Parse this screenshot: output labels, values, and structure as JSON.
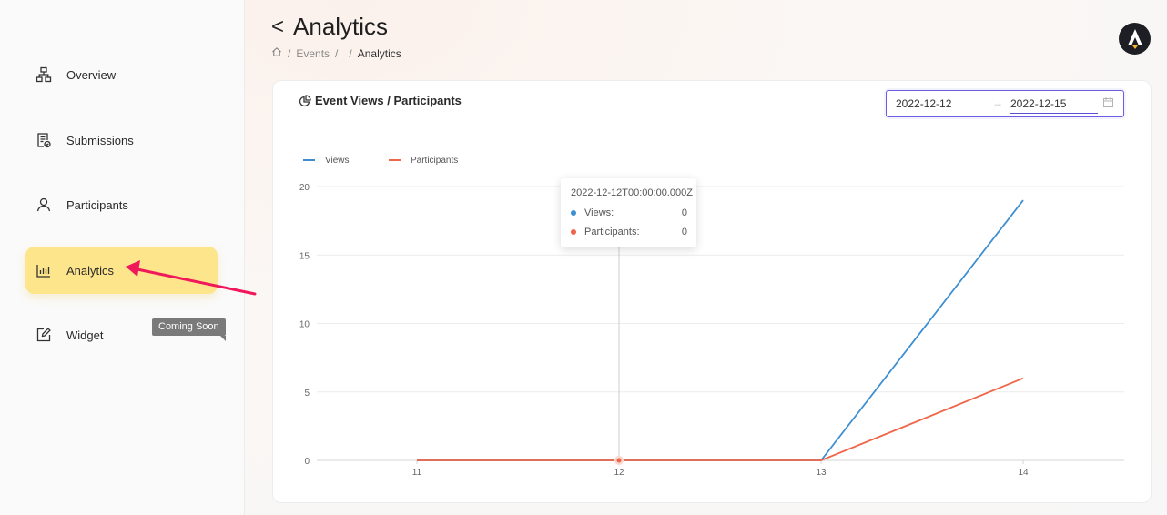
{
  "sidebar": {
    "items": [
      {
        "label": "Overview",
        "icon": "sitemap-icon"
      },
      {
        "label": "Submissions",
        "icon": "document-check-icon"
      },
      {
        "label": "Participants",
        "icon": "users-icon"
      },
      {
        "label": "Analytics",
        "icon": "bar-chart-icon",
        "active": true
      },
      {
        "label": "Widget",
        "icon": "edit-square-icon"
      }
    ],
    "coming_soon": "Coming Soon"
  },
  "header": {
    "back_glyph": "<",
    "title": "Analytics",
    "breadcrumb": {
      "sep1": "/",
      "events": "Events",
      "sep2": "/",
      "sep3": "/",
      "current": "Analytics"
    }
  },
  "card": {
    "title": "Event Views / Participants",
    "date_range": {
      "start": "2022-12-12",
      "arrow": "→",
      "end": "2022-12-15"
    }
  },
  "tooltip": {
    "title": "2022-12-12T00:00:00.000Z",
    "rows": [
      {
        "label": "Views:",
        "value": "0"
      },
      {
        "label": "Participants:",
        "value": "0"
      }
    ]
  },
  "colors": {
    "views": "#3d8fd1",
    "participants": "#ef6548",
    "active_nav": "#fde58c",
    "arrow": "#f0185a"
  },
  "chart_data": {
    "type": "line",
    "categories": [
      "11",
      "12",
      "13",
      "14"
    ],
    "series": [
      {
        "name": "Views",
        "values": [
          0,
          0,
          0,
          19
        ]
      },
      {
        "name": "Participants",
        "values": [
          0,
          0,
          0,
          6
        ]
      }
    ],
    "yticks": [
      "0",
      "5",
      "10",
      "15",
      "20"
    ],
    "ylim": [
      0,
      20
    ],
    "legend_position": "top-left",
    "grid": true
  }
}
